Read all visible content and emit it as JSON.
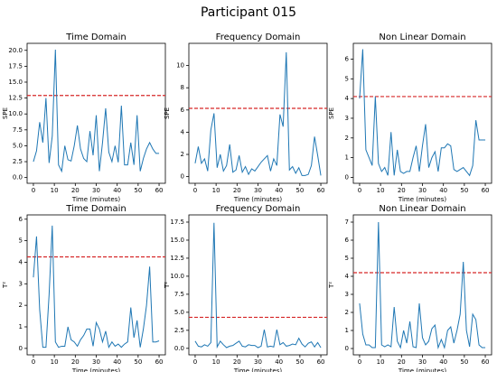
{
  "title": "Participant 015",
  "chart_data": [
    {
      "type": "line",
      "title": "Time Domain",
      "xlabel": "Time (minutes)",
      "ylabel": "SPE",
      "color": "#1f77b4",
      "threshold": 12.9,
      "threshold_color": "#d62728",
      "xlim": [
        -3,
        63
      ],
      "xticks": [
        0,
        10,
        20,
        30,
        40,
        50,
        60
      ],
      "ylim": [
        -0.9,
        21.1
      ],
      "yticks": [
        {
          "value": 0,
          "label": "0.0"
        },
        2.5,
        {
          "value": 5,
          "label": "5.0"
        },
        7.5,
        {
          "value": 10,
          "label": "10.0"
        },
        12.5,
        {
          "value": 15,
          "label": "15.0"
        },
        17.5,
        {
          "value": 20,
          "label": "20.0"
        }
      ],
      "x": [
        0,
        1.5,
        3,
        4.5,
        6,
        7.5,
        9,
        10.5,
        12,
        13.5,
        15,
        16.5,
        18,
        19.5,
        21,
        22.5,
        24,
        25.5,
        27,
        28.5,
        30,
        31.5,
        33,
        34.5,
        36,
        37.5,
        39,
        40.5,
        42,
        43.5,
        45,
        46.5,
        48,
        49.5,
        51,
        52.5,
        54,
        55.5,
        57,
        58.5,
        60
      ],
      "values": [
        2.5,
        4.2,
        8.7,
        5.5,
        12.5,
        2.3,
        6.5,
        20.1,
        2.0,
        1.0,
        5.0,
        2.8,
        2.6,
        5.0,
        8.2,
        4.5,
        3.0,
        2.5,
        7.3,
        3.5,
        9.8,
        1.0,
        5.5,
        10.9,
        4.0,
        2.5,
        5.0,
        2.4,
        11.3,
        2.0,
        2.0,
        5.5,
        2.0,
        9.8,
        1.0,
        3.0,
        4.5,
        5.5,
        4.5,
        3.8,
        3.8
      ]
    },
    {
      "type": "line",
      "title": "Frequency Domain",
      "xlabel": "Time (minutes)",
      "ylabel": "SPE",
      "color": "#1f77b4",
      "threshold": 6.15,
      "threshold_color": "#d62728",
      "xlim": [
        -3,
        63
      ],
      "xticks": [
        0,
        10,
        20,
        30,
        40,
        50,
        60
      ],
      "ylim": [
        -0.6,
        12
      ],
      "yticks": [
        0,
        2,
        4,
        6,
        8,
        10
      ],
      "x": [
        0,
        1.5,
        3,
        4.5,
        6,
        7.5,
        9,
        10.5,
        12,
        13.5,
        15,
        16.5,
        18,
        19.5,
        21,
        22.5,
        24,
        25.5,
        27,
        28.5,
        30,
        31.5,
        33,
        34.5,
        36,
        37.5,
        39,
        40.5,
        42,
        43.5,
        45,
        46.5,
        48,
        49.5,
        51,
        52.5,
        54,
        55.5,
        57,
        58.5,
        60
      ],
      "values": [
        1.2,
        2.7,
        1.2,
        1.6,
        0.5,
        4.2,
        5.7,
        0.8,
        2.0,
        0.5,
        1.0,
        2.9,
        0.4,
        0.6,
        1.9,
        0.4,
        0.9,
        0.2,
        0.7,
        0.5,
        0.9,
        1.3,
        1.6,
        1.9,
        0.5,
        1.6,
        1.0,
        5.6,
        4.5,
        11.2,
        0.6,
        0.9,
        0.3,
        0.8,
        0.1,
        0.1,
        0.2,
        1.0,
        3.6,
        1.9,
        0.1
      ]
    },
    {
      "type": "line",
      "title": "Non Linear Domain",
      "xlabel": "Time (minutes)",
      "ylabel": "SPE",
      "color": "#1f77b4",
      "threshold": 4.1,
      "threshold_color": "#d62728",
      "xlim": [
        -3,
        63
      ],
      "xticks": [
        0,
        10,
        20,
        30,
        40,
        50,
        60
      ],
      "ylim": [
        -0.3,
        6.8
      ],
      "yticks": [
        0,
        1,
        2,
        3,
        4,
        5,
        6
      ],
      "x": [
        0,
        1.5,
        3,
        4.5,
        6,
        7.5,
        9,
        10.5,
        12,
        13.5,
        15,
        16.5,
        18,
        19.5,
        21,
        22.5,
        24,
        25.5,
        27,
        28.5,
        30,
        31.5,
        33,
        34.5,
        36,
        37.5,
        39,
        40.5,
        42,
        43.5,
        45,
        46.5,
        48,
        49.5,
        51,
        52.5,
        54,
        55.5,
        57,
        58.5,
        60
      ],
      "values": [
        4.0,
        6.5,
        1.4,
        1.0,
        0.6,
        4.1,
        0.7,
        0.3,
        0.5,
        0.1,
        2.3,
        0.1,
        1.4,
        0.3,
        0.2,
        0.3,
        0.3,
        1.0,
        1.6,
        0.3,
        1.6,
        2.7,
        0.5,
        1.0,
        1.3,
        0.3,
        1.5,
        1.5,
        1.7,
        1.6,
        0.4,
        0.3,
        0.4,
        0.5,
        0.3,
        0.1,
        0.6,
        2.9,
        1.9,
        1.9,
        1.9
      ]
    },
    {
      "type": "line",
      "title": "Time Domain",
      "xlabel": "Time (minutes)",
      "ylabel": "T²",
      "color": "#1f77b4",
      "threshold": 4.25,
      "threshold_color": "#d62728",
      "xlim": [
        -3,
        63
      ],
      "xticks": [
        0,
        10,
        20,
        30,
        40,
        50,
        60
      ],
      "ylim": [
        -0.3,
        6.2
      ],
      "yticks": [
        0,
        1,
        2,
        3,
        4,
        5,
        6
      ],
      "x": [
        0,
        1.5,
        3,
        4.5,
        6,
        7.5,
        9,
        10.5,
        12,
        13.5,
        15,
        16.5,
        18,
        19.5,
        21,
        22.5,
        24,
        25.5,
        27,
        28.5,
        30,
        31.5,
        33,
        34.5,
        36,
        37.5,
        39,
        40.5,
        42,
        43.5,
        45,
        46.5,
        48,
        49.5,
        51,
        52.5,
        54,
        55.5,
        57,
        58.5,
        60
      ],
      "values": [
        3.3,
        5.2,
        1.8,
        0.05,
        0.05,
        2.5,
        5.7,
        0.3,
        0.05,
        0.1,
        0.1,
        1.0,
        0.4,
        0.3,
        0.1,
        0.4,
        0.6,
        0.9,
        0.9,
        0.1,
        1.2,
        0.9,
        0.3,
        0.8,
        0.05,
        0.3,
        0.1,
        0.2,
        0.05,
        0.2,
        0.3,
        1.9,
        0.5,
        1.3,
        0.05,
        0.9,
        2.0,
        3.8,
        0.3,
        0.3,
        0.35
      ]
    },
    {
      "type": "line",
      "title": "Frequency Domain",
      "xlabel": "Time (minutes)",
      "ylabel": "T²",
      "color": "#1f77b4",
      "threshold": 4.3,
      "threshold_color": "#d62728",
      "xlim": [
        -3,
        63
      ],
      "xticks": [
        0,
        10,
        20,
        30,
        40,
        50,
        60
      ],
      "ylim": [
        -0.9,
        18.5
      ],
      "yticks": [
        {
          "value": 0,
          "label": "0.0"
        },
        2.5,
        {
          "value": 5,
          "label": "5.0"
        },
        7.5,
        {
          "value": 10,
          "label": "10.0"
        },
        12.5,
        {
          "value": 15,
          "label": "15.0"
        },
        17.5
      ],
      "x": [
        0,
        1.5,
        3,
        4.5,
        6,
        7.5,
        9,
        10.5,
        12,
        13.5,
        15,
        16.5,
        18,
        19.5,
        21,
        22.5,
        24,
        25.5,
        27,
        28.5,
        30,
        31.5,
        33,
        34.5,
        36,
        37.5,
        39,
        40.5,
        42,
        43.5,
        45,
        46.5,
        48,
        49.5,
        51,
        52.5,
        54,
        55.5,
        57,
        58.5,
        60
      ],
      "values": [
        1.0,
        0.3,
        0.2,
        0.5,
        0.3,
        0.8,
        17.4,
        0.2,
        1.0,
        0.5,
        0.1,
        0.3,
        0.4,
        0.7,
        1.0,
        0.3,
        0.2,
        0.5,
        0.4,
        0.4,
        0.1,
        0.3,
        2.6,
        0.2,
        0.3,
        0.2,
        2.6,
        0.5,
        0.8,
        0.3,
        0.4,
        0.6,
        0.5,
        1.4,
        0.6,
        0.2,
        0.7,
        0.9,
        0.2,
        0.8,
        0.1
      ]
    },
    {
      "type": "line",
      "title": "Non Linear Domain",
      "xlabel": "Time (minutes)",
      "ylabel": "T²",
      "color": "#1f77b4",
      "threshold": 4.2,
      "threshold_color": "#d62728",
      "xlim": [
        -3,
        63
      ],
      "xticks": [
        0,
        10,
        20,
        30,
        40,
        50,
        60
      ],
      "ylim": [
        -0.35,
        7.4
      ],
      "yticks": [
        0,
        1,
        2,
        3,
        4,
        5,
        6,
        7
      ],
      "x": [
        0,
        1.5,
        3,
        4.5,
        6,
        7.5,
        9,
        10.5,
        12,
        13.5,
        15,
        16.5,
        18,
        19.5,
        21,
        22.5,
        24,
        25.5,
        27,
        28.5,
        30,
        31.5,
        33,
        34.5,
        36,
        37.5,
        39,
        40.5,
        42,
        43.5,
        45,
        46.5,
        48,
        49.5,
        51,
        52.5,
        54,
        55.5,
        57,
        58.5,
        60
      ],
      "values": [
        2.5,
        0.8,
        0.2,
        0.2,
        0.05,
        0.05,
        7.0,
        0.2,
        0.1,
        0.2,
        0.1,
        2.3,
        0.4,
        0.05,
        1.0,
        0.3,
        1.5,
        0.1,
        0.05,
        2.5,
        0.6,
        0.2,
        0.4,
        1.1,
        1.3,
        0.05,
        0.5,
        0.05,
        1.0,
        1.2,
        0.3,
        1.0,
        1.9,
        4.8,
        1.0,
        0.1,
        1.9,
        1.6,
        0.2,
        0.05,
        0.05
      ]
    }
  ]
}
